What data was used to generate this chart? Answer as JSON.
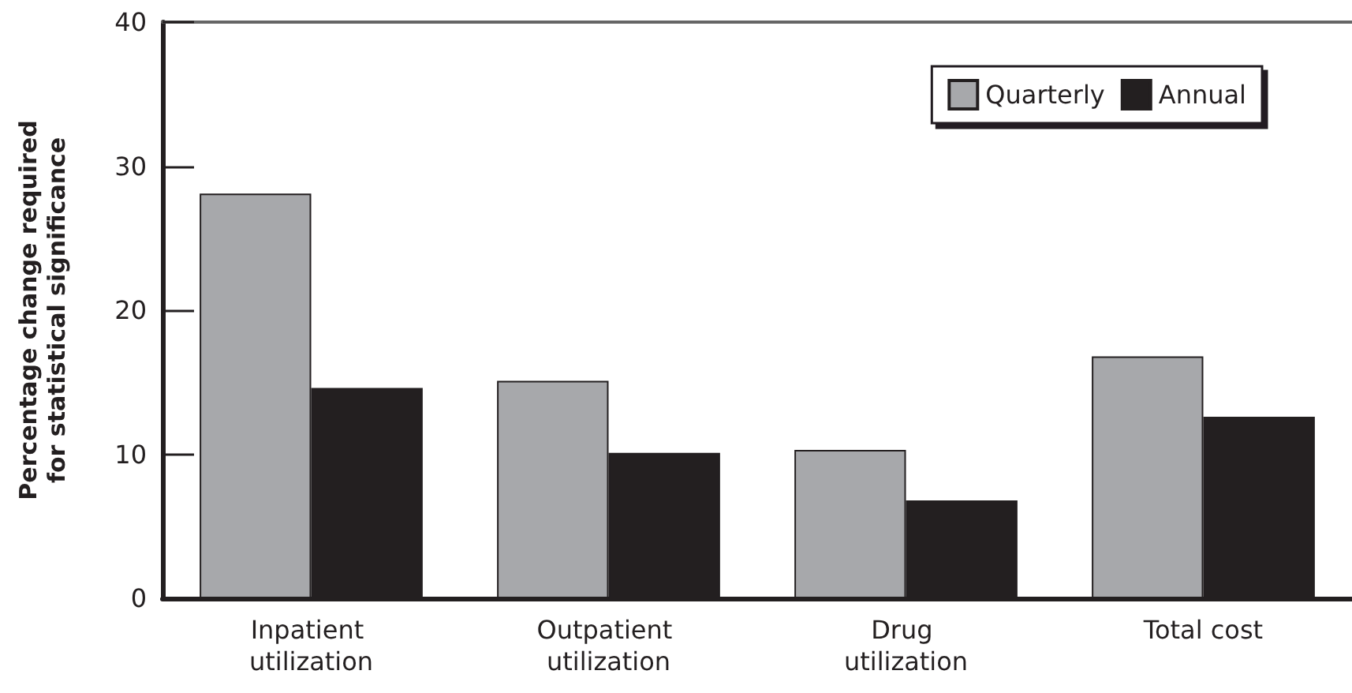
{
  "chart_data": {
    "type": "bar",
    "ylabel": "Percentage change required for statistical significance",
    "categories": [
      "Inpatient utilization",
      "Outpatient utilization",
      "Drug utilization",
      "Total cost"
    ],
    "series": [
      {
        "name": "Quarterly",
        "color": "#a7a8ab",
        "values": [
          28.1,
          15.1,
          10.3,
          16.8
        ]
      },
      {
        "name": "Annual",
        "color": "#231f20",
        "values": [
          14.6,
          10.1,
          6.8,
          12.6
        ]
      }
    ],
    "ylim": [
      0,
      40
    ],
    "yticks": [
      0,
      10,
      20,
      30,
      40
    ],
    "grid": false,
    "legend": "top right"
  }
}
